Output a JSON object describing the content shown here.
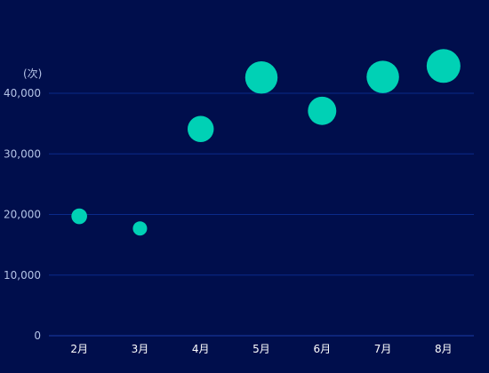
{
  "chart_data": {
    "type": "scatter",
    "title": "",
    "xlabel": "",
    "ylabel": "",
    "y_unit_label": "(次)",
    "categories": [
      "2月",
      "3月",
      "4月",
      "5月",
      "6月",
      "7月",
      "8月"
    ],
    "values": [
      19700,
      17700,
      34100,
      42600,
      37100,
      42700,
      44500
    ],
    "ylim": [
      0,
      40000
    ],
    "y_ticks": [
      0,
      10000,
      20000,
      30000,
      40000
    ],
    "y_tick_labels": [
      "0",
      "10,000",
      "20,000",
      "30,000",
      "40,000"
    ],
    "grid": true,
    "legend": "none",
    "point_color": "#00d1b5",
    "bubble_size_by_value": true
  }
}
